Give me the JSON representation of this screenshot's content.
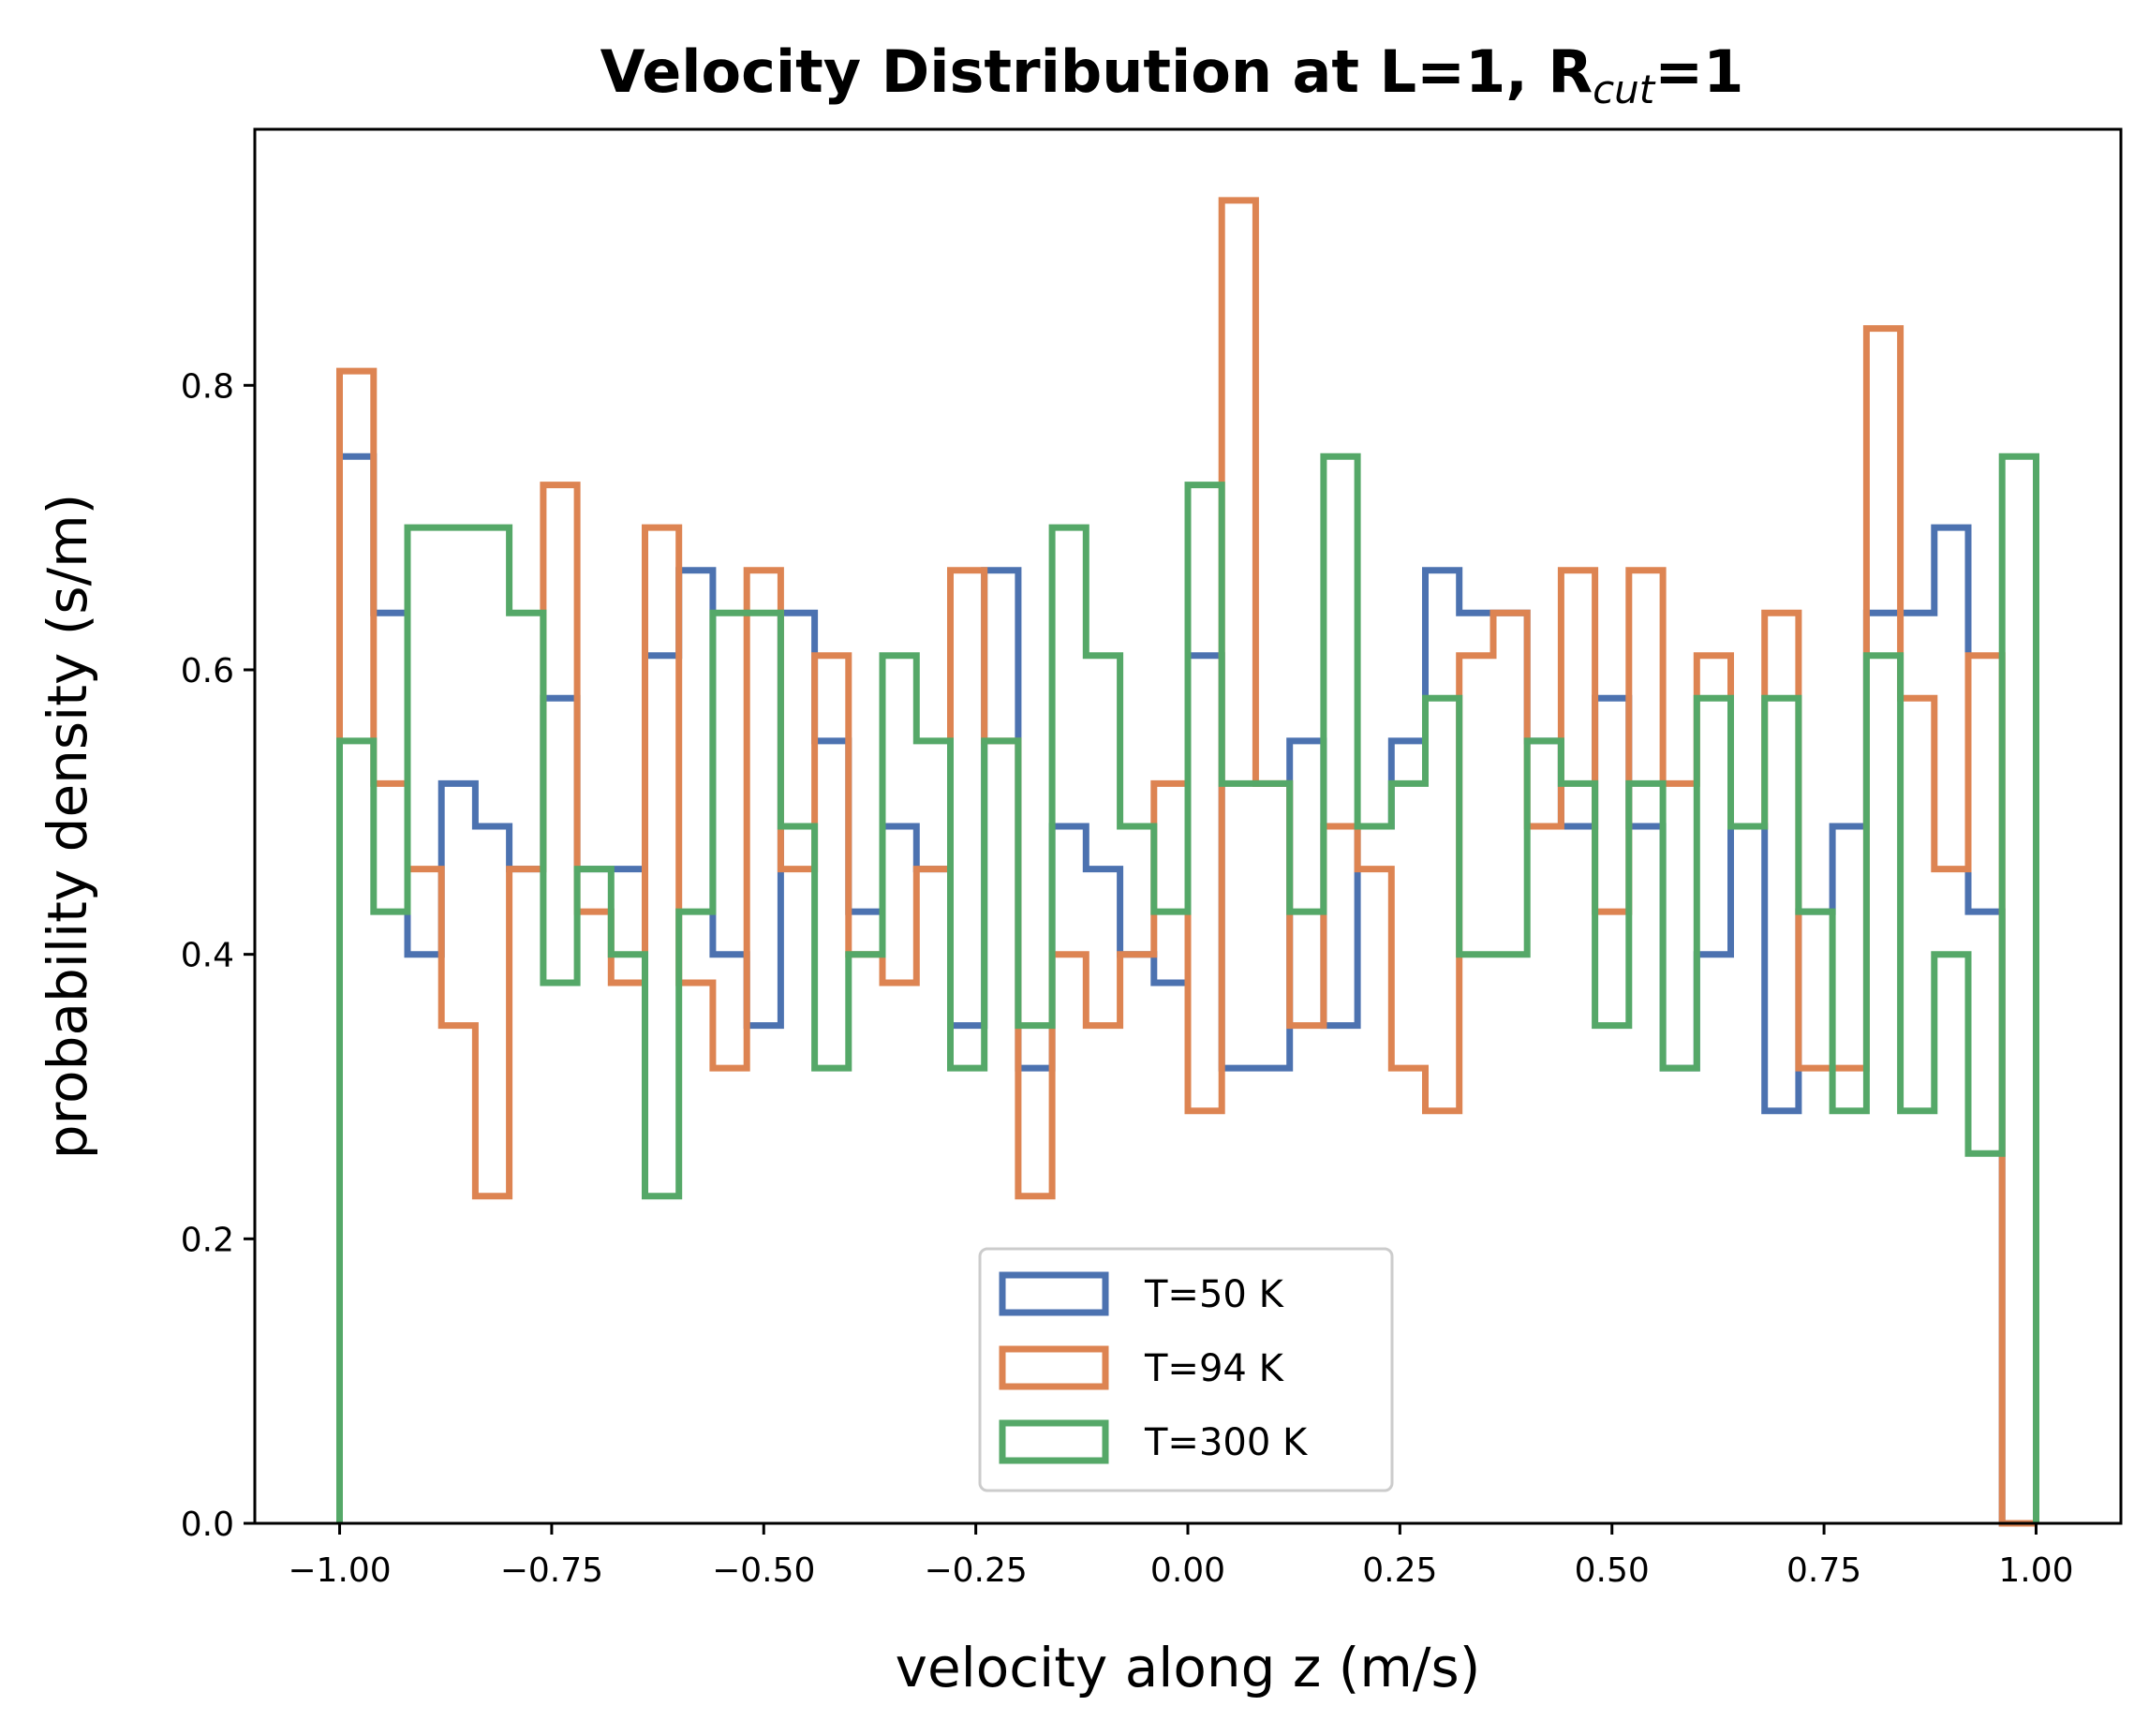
{
  "chart_data": {
    "type": "histogram-step",
    "title": {
      "main": "Velocity Distribution at L=1, R",
      "sub": "cut",
      "tail": "=1"
    },
    "xlabel": "velocity along z (m/s)",
    "ylabel": "probability density (s/m)",
    "xlim": [
      -1.1,
      1.1
    ],
    "ylim": [
      0,
      0.98
    ],
    "xticks": [
      -1.0,
      -0.75,
      -0.5,
      -0.25,
      0.0,
      0.25,
      0.5,
      0.75,
      1.0
    ],
    "xtick_labels": [
      "−1.00",
      "−0.75",
      "−0.50",
      "−0.25",
      "0.00",
      "0.25",
      "0.50",
      "0.75",
      "1.00"
    ],
    "yticks": [
      0.0,
      0.2,
      0.4,
      0.6,
      0.8
    ],
    "ytick_labels": [
      "0.0",
      "0.2",
      "0.4",
      "0.6",
      "0.8"
    ],
    "bin_edges_range": [
      -1.0,
      1.0
    ],
    "bin_count": 50,
    "legend_position": "lower-center",
    "series": [
      {
        "name": "T=50 K",
        "color": "#4c72b0",
        "values": [
          0.75,
          0.64,
          0.4,
          0.52,
          0.49,
          0.46,
          0.58,
          0.46,
          0.46,
          0.61,
          0.67,
          0.4,
          0.35,
          0.64,
          0.55,
          0.43,
          0.49,
          0.46,
          0.35,
          0.67,
          0.32,
          0.49,
          0.46,
          0.4,
          0.38,
          0.61,
          0.32,
          0.32,
          0.55,
          0.35,
          0.49,
          0.55,
          0.67,
          0.64,
          0.64,
          0.55,
          0.49,
          0.58,
          0.49,
          0.32,
          0.4,
          0.49,
          0.29,
          0.43,
          0.49,
          0.64,
          0.64,
          0.7,
          0.43,
          0.0
        ]
      },
      {
        "name": "T=94 K",
        "color": "#dd8452",
        "values": [
          0.81,
          0.52,
          0.46,
          0.35,
          0.23,
          0.46,
          0.73,
          0.43,
          0.38,
          0.7,
          0.38,
          0.32,
          0.67,
          0.46,
          0.61,
          0.4,
          0.38,
          0.46,
          0.67,
          0.55,
          0.23,
          0.4,
          0.35,
          0.4,
          0.52,
          0.29,
          0.93,
          0.52,
          0.35,
          0.49,
          0.46,
          0.32,
          0.29,
          0.61,
          0.64,
          0.49,
          0.67,
          0.43,
          0.67,
          0.52,
          0.61,
          0.49,
          0.64,
          0.32,
          0.32,
          0.84,
          0.58,
          0.46,
          0.61,
          0.0
        ]
      },
      {
        "name": "T=300 K",
        "color": "#55a868",
        "values": [
          0.55,
          0.43,
          0.7,
          0.7,
          0.7,
          0.64,
          0.38,
          0.46,
          0.4,
          0.23,
          0.43,
          0.64,
          0.64,
          0.49,
          0.32,
          0.4,
          0.61,
          0.55,
          0.32,
          0.55,
          0.35,
          0.7,
          0.61,
          0.49,
          0.43,
          0.73,
          0.52,
          0.52,
          0.43,
          0.75,
          0.49,
          0.52,
          0.58,
          0.4,
          0.4,
          0.55,
          0.52,
          0.35,
          0.52,
          0.32,
          0.58,
          0.49,
          0.58,
          0.43,
          0.29,
          0.61,
          0.29,
          0.4,
          0.26,
          0.75
        ]
      }
    ]
  }
}
